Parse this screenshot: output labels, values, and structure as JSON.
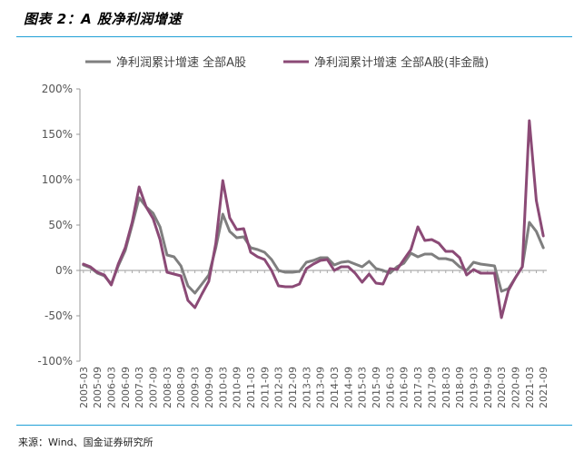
{
  "figure": {
    "title": "图表 2：A 股净利润增速",
    "source": "来源：Wind、国金证券研究所"
  },
  "chart_data": {
    "type": "line",
    "title": "",
    "xlabel": "",
    "ylabel": "",
    "ylim": [
      -100,
      200
    ],
    "yticks": [
      -100,
      -50,
      0,
      50,
      100,
      150,
      200
    ],
    "ytick_labels": [
      "-100%",
      "-50%",
      "0%",
      "50%",
      "100%",
      "150%",
      "200%"
    ],
    "grid": false,
    "legend_position": "top",
    "categories": [
      "2005-03",
      "2005-06",
      "2005-09",
      "2005-12",
      "2006-03",
      "2006-06",
      "2006-09",
      "2006-12",
      "2007-03",
      "2007-06",
      "2007-09",
      "2007-12",
      "2008-03",
      "2008-06",
      "2008-09",
      "2008-12",
      "2009-03",
      "2009-06",
      "2009-09",
      "2009-12",
      "2010-03",
      "2010-06",
      "2010-09",
      "2010-12",
      "2011-03",
      "2011-06",
      "2011-09",
      "2011-12",
      "2012-03",
      "2012-06",
      "2012-09",
      "2012-12",
      "2013-03",
      "2013-06",
      "2013-09",
      "2013-12",
      "2014-03",
      "2014-06",
      "2014-09",
      "2014-12",
      "2015-03",
      "2015-06",
      "2015-09",
      "2015-12",
      "2016-03",
      "2016-06",
      "2016-09",
      "2016-12",
      "2017-03",
      "2017-06",
      "2017-09",
      "2017-12",
      "2018-03",
      "2018-06",
      "2018-09",
      "2018-12",
      "2019-03",
      "2019-06",
      "2019-09",
      "2019-12",
      "2020-03",
      "2020-06",
      "2020-09",
      "2020-12",
      "2021-03",
      "2021-06",
      "2021-09"
    ],
    "tick_labels": [
      "2005-03",
      "2005-09",
      "2006-03",
      "2006-09",
      "2007-03",
      "2007-09",
      "2008-03",
      "2008-09",
      "2009-03",
      "2009-09",
      "2010-03",
      "2010-09",
      "2011-03",
      "2011-09",
      "2012-03",
      "2012-09",
      "2013-03",
      "2013-09",
      "2014-03",
      "2014-09",
      "2015-03",
      "2015-09",
      "2016-03",
      "2016-09",
      "2017-03",
      "2017-09",
      "2018-03",
      "2018-09",
      "2019-03",
      "2019-09",
      "2020-03",
      "2020-09",
      "2021-03",
      "2021-09"
    ],
    "series": [
      {
        "name": "净利润累计增速 全部A股",
        "color": "#7f7f7f",
        "values": [
          6,
          3,
          -3,
          -6,
          -15,
          5,
          22,
          50,
          80,
          70,
          63,
          48,
          17,
          15,
          5,
          -17,
          -25,
          -15,
          -5,
          25,
          62,
          43,
          36,
          37,
          25,
          23,
          20,
          12,
          0,
          -2,
          -2,
          -1,
          9,
          11,
          14,
          14,
          6,
          9,
          10,
          7,
          4,
          10,
          2,
          0,
          -3,
          4,
          8,
          19,
          15,
          18,
          18,
          13,
          13,
          11,
          4,
          0,
          9,
          7,
          6,
          5,
          -23,
          -20,
          -8,
          4,
          53,
          43,
          25
        ]
      },
      {
        "name": "净利润累计增速 全部A股(非金融)",
        "color": "#8b4a76",
        "values": [
          7,
          4,
          -2,
          -5,
          -16,
          7,
          25,
          53,
          92,
          70,
          57,
          34,
          -2,
          -4,
          -6,
          -33,
          -41,
          -26,
          -12,
          30,
          99,
          58,
          45,
          46,
          20,
          15,
          12,
          0,
          -17,
          -18,
          -18,
          -15,
          2,
          7,
          11,
          12,
          0,
          4,
          4,
          -3,
          -13,
          -4,
          -14,
          -15,
          2,
          1,
          12,
          23,
          48,
          33,
          34,
          30,
          21,
          21,
          14,
          -5,
          1,
          -3,
          -3,
          -3,
          -52,
          -22,
          -8,
          4,
          165,
          77,
          38
        ]
      }
    ]
  }
}
